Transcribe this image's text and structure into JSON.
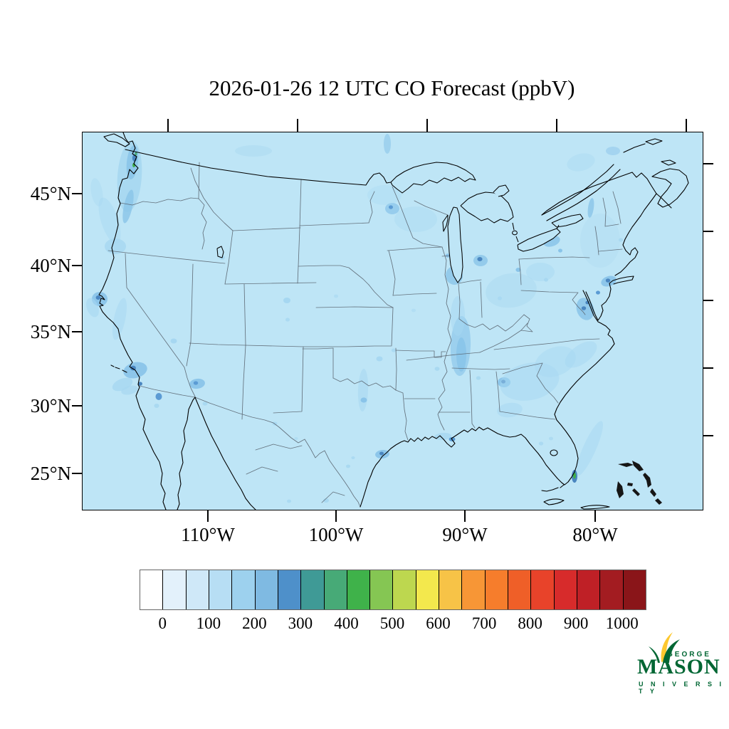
{
  "title": "2026-01-26 12 UTC CO Forecast (ppbV)",
  "axes": {
    "lat_ticks": [
      "45°N",
      "40°N",
      "35°N",
      "30°N",
      "25°N"
    ],
    "lon_ticks": [
      "110°W",
      "100°W",
      "90°W",
      "80°W"
    ]
  },
  "colorbar": {
    "tick_labels": [
      "0",
      "100",
      "200",
      "300",
      "400",
      "500",
      "600",
      "700",
      "800",
      "900",
      "1000"
    ],
    "segment_colors": [
      "#ffffff",
      "#e3f1fb",
      "#cfe8f8",
      "#b7def4",
      "#9dd1ee",
      "#7fbae2",
      "#4e90ca",
      "#3f9a96",
      "#47aa77",
      "#3fb24a",
      "#85c653",
      "#bdd74f",
      "#f3e84d",
      "#f7c347",
      "#f79636",
      "#f67d2c",
      "#ef5f28",
      "#e8432a",
      "#d72b2b",
      "#bf2026",
      "#a31c21",
      "#8a1519"
    ]
  },
  "map": {
    "base_color": "#bee5f6",
    "coast_color": "#000000",
    "state_border_color": "#5a6570",
    "hotspot_colors": {
      "light": "#a6d7f1",
      "medium": "#8ac4e9",
      "high": "#5b9bd4",
      "very_high": "#4a86c0",
      "green_peak": "#3fae49",
      "teal_peak": "#47aa77"
    }
  },
  "chart_data": {
    "type": "heatmap",
    "title": "2026-01-26 12 UTC CO Forecast (ppbV)",
    "units": "ppbV",
    "colorbar_tick_values": [
      0,
      100,
      200,
      300,
      400,
      500,
      600,
      700,
      800,
      900,
      1000
    ],
    "colorbar_segments": 22,
    "lat_axis": [
      "45°N",
      "40°N",
      "35°N",
      "30°N",
      "25°N"
    ],
    "lon_axis": [
      "110°W",
      "100°W",
      "90°W",
      "80°W"
    ],
    "description": "CO concentrations mostly 50-150 ppbV over CONUS, with elevated plumes (200-400 ppbV) over Puget Sound and the Willamette Valley, San Francisco Bay, Los Angeles, San Diego, Phoenix, Houston, New Orleans, central Tennessee, Atlanta, Chicago, Detroit, Toronto, New York City and Chesapeake Bay, and a 400-500 ppbV peak (green) at Miami, Florida"
  },
  "logo": {
    "top": "GEORGE",
    "main": "MASON",
    "bottom": "U N I V E R S I T Y",
    "green": "#006633",
    "gold": "#fdc82f"
  }
}
